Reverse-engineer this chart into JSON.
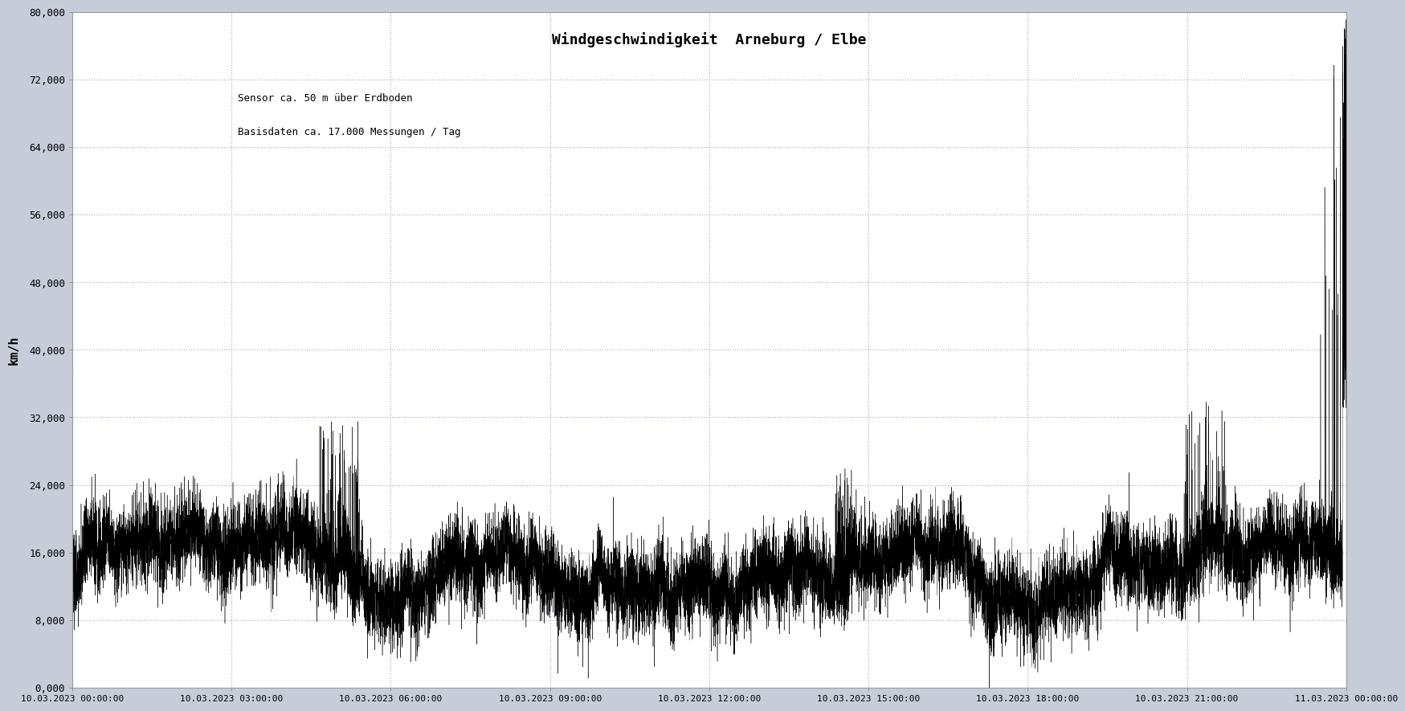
{
  "title": "Windgeschwindigkeit  Arneburg / Elbe",
  "subtitle_line1": "Sensor ca. 50 m über Erdboden",
  "subtitle_line2": "Basisdaten ca. 17.000 Messungen / Tag",
  "ylabel": "km/h",
  "ylim": [
    0,
    80000
  ],
  "yticks": [
    0,
    8000,
    16000,
    24000,
    32000,
    40000,
    48000,
    56000,
    64000,
    72000,
    80000
  ],
  "ytick_labels": [
    "0,000",
    "8,000",
    "16,000",
    "24,000",
    "32,000",
    "40,000",
    "48,000",
    "56,000",
    "64,000",
    "72,000",
    "80,000"
  ],
  "xtick_labels": [
    "10.03.2023 00:00:00",
    "10.03.2023 03:00:00",
    "10.03.2023 06:00:00",
    "10.03.2023 09:00:00",
    "10.03.2023 12:00:00",
    "10.03.2023 15:00:00",
    "10.03.2023 18:00:00",
    "10.03.2023 21:00:00",
    "11.03.2023 00:00:00"
  ],
  "outer_bg_color": "#c8ccd8",
  "plot_bg_color": "#ffffff",
  "line_color": "#000000",
  "grid_color": "#aaaacc",
  "title_fontsize": 13,
  "subtitle_fontsize": 9,
  "tick_fontsize": 9,
  "num_points": 17280,
  "seed": 42
}
